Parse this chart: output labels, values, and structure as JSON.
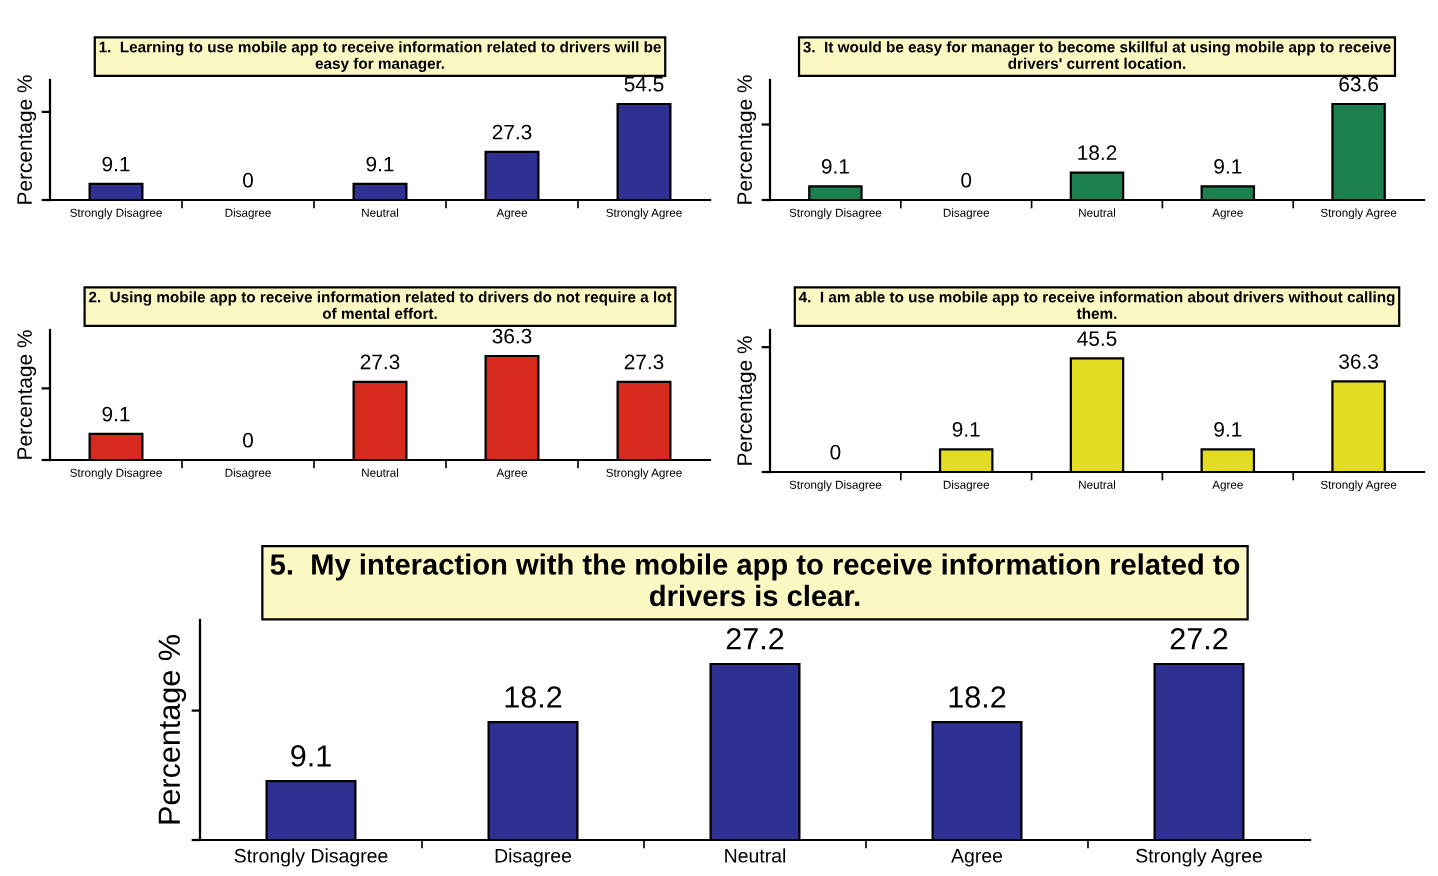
{
  "chart_data": [
    {
      "type": "bar",
      "title": "1.  Learning to use mobile app to receive information related to drivers will be easy for manager.",
      "ylabel": "Percentage %",
      "categories": [
        "Strongly Disagree",
        "Disagree",
        "Neutral",
        "Agree",
        "Strongly Agree"
      ],
      "values": [
        9.1,
        0,
        9.1,
        27.3,
        54.5
      ],
      "color": "#2e3192",
      "data_labels": true,
      "tick_labels": "x"
    },
    {
      "type": "bar",
      "title": "3.  It would be easy for manager to become skillful at using mobile app to receive drivers' current location.",
      "ylabel": "Percentage %",
      "categories": [
        "Strongly Disagree",
        "Disagree",
        "Neutral",
        "Agree",
        "Strongly Agree"
      ],
      "values": [
        9.1,
        0,
        18.2,
        9.1,
        63.6
      ],
      "color": "#1c7f4e",
      "data_labels": true,
      "tick_labels": "x"
    },
    {
      "type": "bar",
      "title": "2.  Using mobile app to receive information related to drivers do not require a lot of mental effort.",
      "ylabel": "Percentage %",
      "categories": [
        "Strongly Disagree",
        "Disagree",
        "Neutral",
        "Agree",
        "Strongly Agree"
      ],
      "values": [
        9.1,
        0,
        27.3,
        36.3,
        27.3
      ],
      "color": "#d62a1e",
      "data_labels": true,
      "tick_labels": "x"
    },
    {
      "type": "bar",
      "title": "4.  I am able to use mobile app to receive information about drivers without calling them.",
      "ylabel": "Percentage %",
      "categories": [
        "Strongly Disagree",
        "Disagree",
        "Neutral",
        "Agree",
        "Strongly Agree"
      ],
      "values": [
        0,
        9.1,
        45.5,
        9.1,
        36.3
      ],
      "color": "#e2dc22",
      "data_labels": true,
      "tick_labels": "x"
    },
    {
      "type": "bar",
      "title": "5.  My interaction with the mobile app to receive information related to drivers is clear.",
      "ylabel": "Percentage %",
      "categories": [
        "Strongly Disagree",
        "Disagree",
        "Neutral",
        "Agree",
        "Strongly Agree"
      ],
      "values": [
        9.1,
        18.2,
        27.2,
        18.2,
        27.2
      ],
      "color": "#2e3192",
      "data_labels": true,
      "tick_labels": "x"
    }
  ]
}
